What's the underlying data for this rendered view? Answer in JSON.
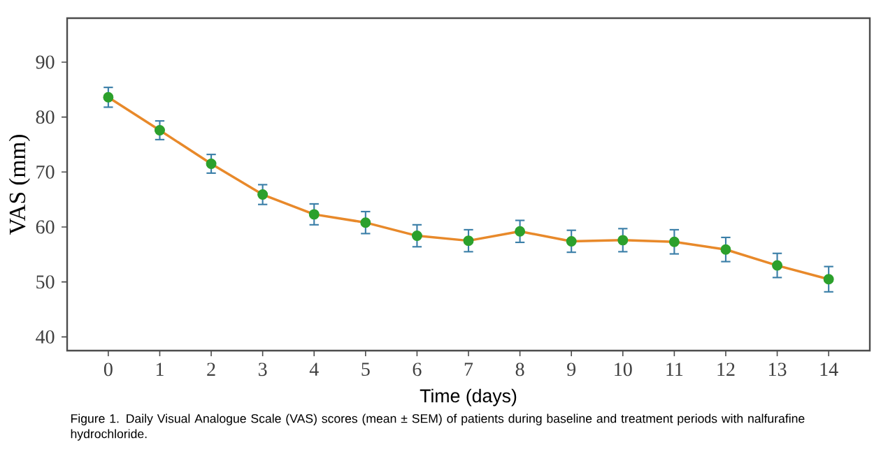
{
  "chart_data": {
    "type": "line",
    "xlabel": "Time  (days)",
    "ylabel": "VAS (mm)",
    "x": [
      0,
      1,
      2,
      3,
      4,
      5,
      6,
      7,
      8,
      9,
      10,
      11,
      12,
      13,
      14
    ],
    "series": [
      {
        "color": "#e8892a",
        "values": [
          83.6,
          77.6,
          71.5,
          65.9,
          62.3,
          60.8,
          58.4,
          57.5,
          59.2,
          57.4,
          57.6,
          57.3,
          55.9,
          53.0,
          50.5
        ],
        "errors": [
          1.8,
          1.7,
          1.7,
          1.8,
          1.9,
          2.0,
          2.0,
          2.0,
          2.0,
          2.0,
          2.1,
          2.2,
          2.2,
          2.2,
          2.3
        ]
      }
    ],
    "xlim": [
      -0.8,
      14.8
    ],
    "ylim": [
      37.5,
      98
    ],
    "xticks": [
      0,
      1,
      2,
      3,
      4,
      5,
      6,
      7,
      8,
      9,
      10,
      11,
      12,
      13,
      14
    ],
    "yticks": [
      40,
      50,
      60,
      70,
      80,
      90
    ],
    "marker": "circle",
    "line_style": "solid",
    "grid": false,
    "annotations": [
      "Figure 1. Daily Visual Analogue Scale (VAS) scores (mean ± SEM) of patients during baseline and treatment periods with nalfurafine hydrochloride."
    ]
  }
}
